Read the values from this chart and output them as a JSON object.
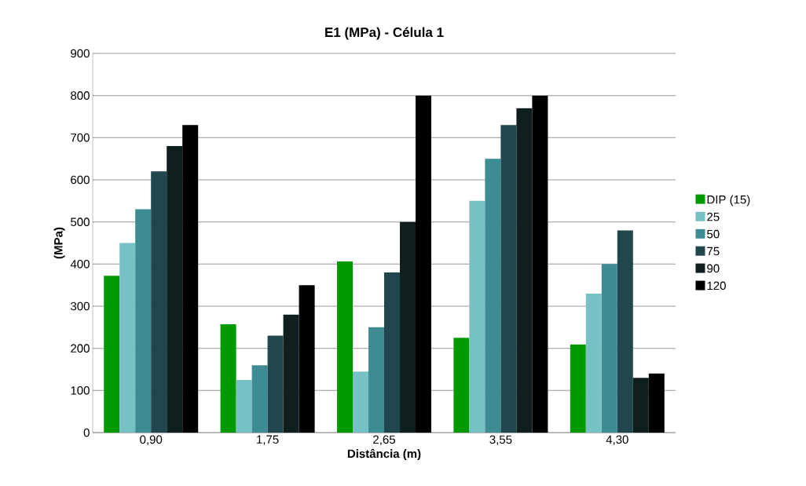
{
  "chart_data": {
    "type": "bar",
    "title": "E1 (MPa) - Célula 1",
    "xlabel": "Distância (m)",
    "ylabel": "(MPa)",
    "categories": [
      "0,90",
      "1,75",
      "2,65",
      "3,55",
      "4,30"
    ],
    "series": [
      {
        "name": "DIP (15)",
        "color": "#009900",
        "values": [
          372,
          257,
          406,
          225,
          209
        ]
      },
      {
        "name": "25",
        "color": "#77c0c4",
        "values": [
          450,
          125,
          145,
          550,
          330
        ]
      },
      {
        "name": "50",
        "color": "#3d8c94",
        "values": [
          530,
          160,
          250,
          650,
          400
        ]
      },
      {
        "name": "75",
        "color": "#1f474d",
        "values": [
          620,
          230,
          380,
          730,
          480
        ]
      },
      {
        "name": "90",
        "color": "#0f1f1f",
        "values": [
          680,
          280,
          500,
          770,
          130
        ]
      },
      {
        "name": "120",
        "color": "#000000",
        "values": [
          730,
          350,
          800,
          800,
          140
        ]
      }
    ],
    "ylim": [
      0,
      900
    ],
    "yticks": [
      0,
      100,
      200,
      300,
      400,
      500,
      600,
      700,
      800,
      900
    ],
    "grid": "y",
    "legend": "right"
  }
}
